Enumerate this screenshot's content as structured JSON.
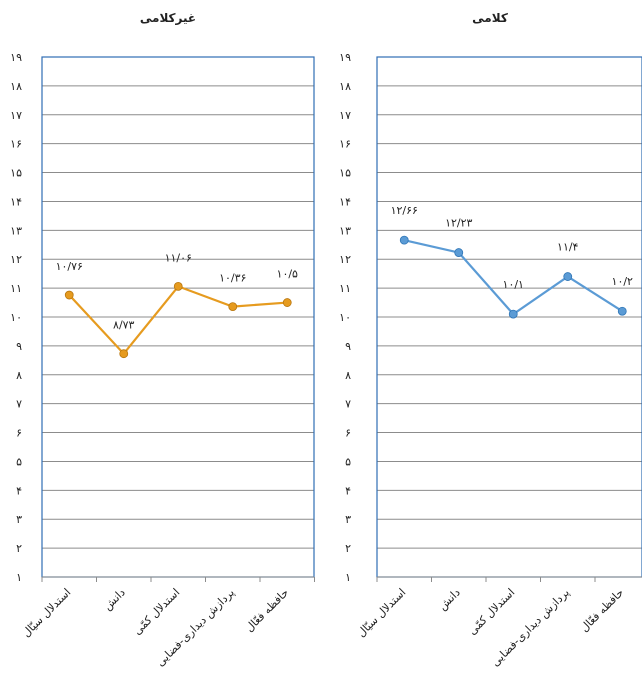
{
  "chart_data": [
    {
      "type": "line",
      "title": "غیرکلامی",
      "categories": [
        "استدلال سیّال",
        "دانش",
        "استدلال کمّی",
        "پردازش دیداری-فضایی",
        "حافظه فعّال"
      ],
      "series": [
        {
          "values": [
            10.76,
            8.73,
            11.06,
            10.36,
            10.5
          ]
        }
      ],
      "data_labels": [
        "۱۰/۷۶",
        "۸/۷۳",
        "۱۱/۰۶",
        "۱۰/۳۶",
        "۱۰/۵"
      ],
      "ylim": [
        1,
        19
      ],
      "yticks": [
        "۱",
        "۲",
        "۳",
        "۴",
        "۵",
        "۶",
        "۷",
        "۸",
        "۹",
        "۱۰",
        "۱۱",
        "۱۲",
        "۱۳",
        "۱۴",
        "۱۵",
        "۱۶",
        "۱۷",
        "۱۸",
        "۱۹"
      ],
      "color": "#E69B1F",
      "grid": true
    },
    {
      "type": "line",
      "title": "کلامی",
      "categories": [
        "استدلال سیّال",
        "دانش",
        "استدلال کمّی",
        "پردازش دیداری-فضایی",
        "حافظه فعّال"
      ],
      "series": [
        {
          "values": [
            12.66,
            12.23,
            10.1,
            11.4,
            10.2
          ]
        }
      ],
      "data_labels": [
        "۱۲/۶۶",
        "۱۲/۲۳",
        "۱۰/۱",
        "۱۱/۴",
        "۱۰/۲"
      ],
      "ylim": [
        1,
        19
      ],
      "yticks": [
        "۱",
        "۲",
        "۳",
        "۴",
        "۵",
        "۶",
        "۷",
        "۸",
        "۹",
        "۱۰",
        "۱۱",
        "۱۲",
        "۱۳",
        "۱۴",
        "۱۵",
        "۱۶",
        "۱۷",
        "۱۸",
        "۱۹"
      ],
      "color": "#5B9BD5",
      "grid": true
    }
  ]
}
